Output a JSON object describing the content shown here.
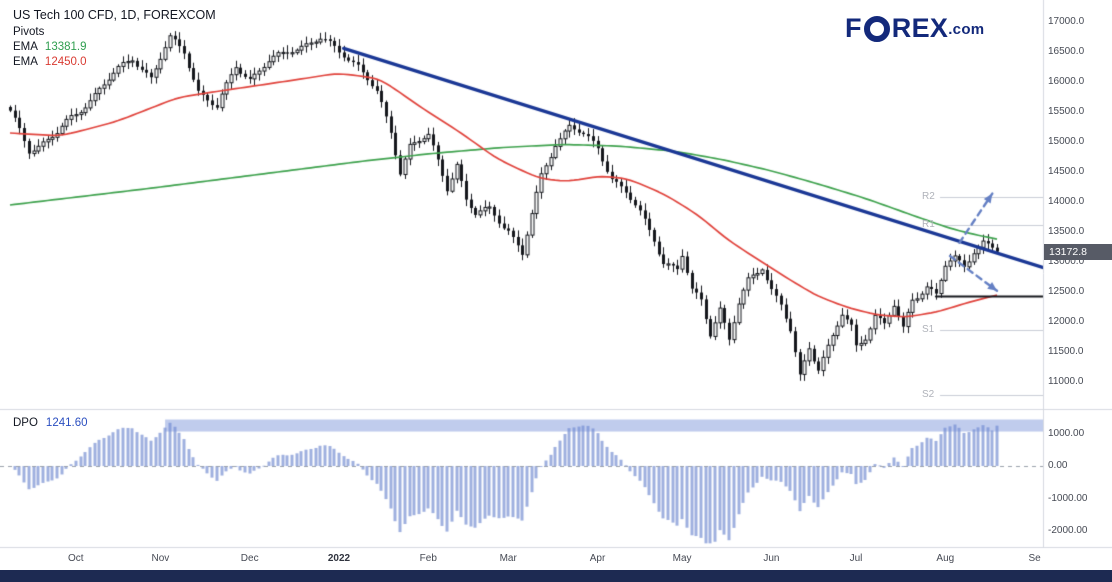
{
  "header": {
    "title": "US Tech 100 CFD, 1D, FOREXCOM",
    "indicator_pivots": "Pivots",
    "ema_label": "EMA",
    "ema_slow_value": "13381.9",
    "ema_fast_value": "12450.0"
  },
  "logo": {
    "left": "F",
    "right": "REX",
    "tld": ".com"
  },
  "price_axis": {
    "ticks": [
      "17000.0",
      "16500.0",
      "16000.0",
      "15500.0",
      "15000.0",
      "14500.0",
      "14000.0",
      "13500.0",
      "13000.0",
      "12500.0",
      "12000.0",
      "11500.0",
      "11000.0"
    ],
    "last_price_badge": "13172.8"
  },
  "dpo_panel": {
    "label": "DPO",
    "value": "1241.60",
    "ticks": [
      "1000.00",
      "0.00",
      "-1000.00",
      "-2000.00"
    ]
  },
  "time_axis": {
    "labels": [
      "Oct",
      "Nov",
      "Dec",
      "2022",
      "Feb",
      "Mar",
      "Apr",
      "May",
      "Jun",
      "Jul",
      "Aug",
      "Se"
    ]
  },
  "colors": {
    "candle": "#15171c",
    "candle_up_fill": "#ffffff",
    "ema_green": "#3fa24e",
    "ema_red": "#e0433c",
    "ema_green_text": "#2f9e4f",
    "ema_red_text": "#d93b32",
    "trendline": "#1a3795",
    "histogram": "#9fb0df",
    "band": "rgba(116,142,216,0.45)",
    "arrow": "#6580c4",
    "badge_bg": "#575b66",
    "logo_navy": "#13297b",
    "separator": "#d6d9e0",
    "axis_text": "#464a54",
    "pivot_text": "#b0b3ba",
    "support_line": "#15171c",
    "zero_line": "#9aa0ab",
    "dpo_value": "#2b4fc0",
    "bottom_bar": "#1d2a52"
  },
  "chart_data": [
    {
      "type": "candlestick",
      "symbol": "US Tech 100 CFD",
      "timeframe": "1D",
      "exchange": "FOREXCOM",
      "bars_total": 211,
      "last_price": 13172.8,
      "ylim": [
        10550,
        17367
      ],
      "yticks": [
        17000,
        16500,
        16000,
        15500,
        15000,
        14500,
        14000,
        13500,
        13000,
        12500,
        12000,
        11500,
        11000
      ],
      "x_month_ticks": [
        {
          "label": "Oct",
          "bar": 14
        },
        {
          "label": "Nov",
          "bar": 32
        },
        {
          "label": "Dec",
          "bar": 51
        },
        {
          "label": "2022",
          "bar": 70
        },
        {
          "label": "Feb",
          "bar": 89
        },
        {
          "label": "Mar",
          "bar": 106
        },
        {
          "label": "Apr",
          "bar": 125
        },
        {
          "label": "May",
          "bar": 143
        },
        {
          "label": "Jun",
          "bar": 162
        },
        {
          "label": "Jul",
          "bar": 180
        },
        {
          "label": "Aug",
          "bar": 199
        },
        {
          "label": "Se",
          "bar": 218
        }
      ],
      "close_keypoints": [
        [
          0,
          15480
        ],
        [
          4,
          14860
        ],
        [
          10,
          15150
        ],
        [
          14,
          15450
        ],
        [
          19,
          15900
        ],
        [
          26,
          16400
        ],
        [
          30,
          16080
        ],
        [
          34,
          16700
        ],
        [
          37,
          16520
        ],
        [
          40,
          15860
        ],
        [
          44,
          15550
        ],
        [
          48,
          16280
        ],
        [
          51,
          16060
        ],
        [
          55,
          16320
        ],
        [
          60,
          16560
        ],
        [
          66,
          16700
        ],
        [
          71,
          16480
        ],
        [
          74,
          16280
        ],
        [
          78,
          15800
        ],
        [
          81,
          15180
        ],
        [
          83,
          14520
        ],
        [
          85,
          14950
        ],
        [
          89,
          15080
        ],
        [
          93,
          14250
        ],
        [
          95,
          14650
        ],
        [
          97,
          14030
        ],
        [
          99,
          13780
        ],
        [
          102,
          13870
        ],
        [
          106,
          13550
        ],
        [
          109,
          13120
        ],
        [
          113,
          14420
        ],
        [
          116,
          15000
        ],
        [
          119,
          15260
        ],
        [
          122,
          15100
        ],
        [
          125,
          14900
        ],
        [
          128,
          14420
        ],
        [
          131,
          14150
        ],
        [
          134,
          13800
        ],
        [
          137,
          13400
        ],
        [
          139,
          13010
        ],
        [
          142,
          12870
        ],
        [
          143,
          13090
        ],
        [
          145,
          12500
        ],
        [
          147,
          12370
        ],
        [
          149,
          11840
        ],
        [
          151,
          12230
        ],
        [
          153,
          11690
        ],
        [
          155,
          12280
        ],
        [
          157,
          12680
        ],
        [
          160,
          12950
        ],
        [
          162,
          12550
        ],
        [
          164,
          12270
        ],
        [
          166,
          11830
        ],
        [
          168,
          11070
        ],
        [
          170,
          11600
        ],
        [
          172,
          11250
        ],
        [
          175,
          11750
        ],
        [
          177,
          12100
        ],
        [
          179,
          11900
        ],
        [
          180,
          11590
        ],
        [
          182,
          11780
        ],
        [
          184,
          12120
        ],
        [
          186,
          11950
        ],
        [
          188,
          12250
        ],
        [
          190,
          11870
        ],
        [
          192,
          12400
        ],
        [
          195,
          12600
        ],
        [
          197,
          12440
        ],
        [
          199,
          12920
        ],
        [
          201,
          13050
        ],
        [
          203,
          12950
        ],
        [
          205,
          13210
        ],
        [
          207,
          13320
        ],
        [
          210,
          13172.8
        ]
      ],
      "ema_slow": {
        "name": "EMA (green)",
        "current": 13381.9,
        "points": [
          [
            0,
            13950
          ],
          [
            15,
            14090
          ],
          [
            30,
            14230
          ],
          [
            45,
            14380
          ],
          [
            60,
            14530
          ],
          [
            75,
            14680
          ],
          [
            90,
            14810
          ],
          [
            105,
            14910
          ],
          [
            118,
            14960
          ],
          [
            130,
            14930
          ],
          [
            142,
            14840
          ],
          [
            152,
            14700
          ],
          [
            162,
            14520
          ],
          [
            172,
            14300
          ],
          [
            182,
            14060
          ],
          [
            192,
            13780
          ],
          [
            200,
            13560
          ],
          [
            205,
            13460
          ],
          [
            210,
            13381.9
          ]
        ]
      },
      "ema_fast": {
        "name": "EMA (red)",
        "current": 12450.0,
        "points": [
          [
            0,
            15150
          ],
          [
            11,
            15100
          ],
          [
            23,
            15350
          ],
          [
            36,
            15750
          ],
          [
            49,
            15900
          ],
          [
            62,
            16050
          ],
          [
            70,
            16150
          ],
          [
            79,
            16050
          ],
          [
            87,
            15600
          ],
          [
            96,
            15150
          ],
          [
            104,
            14700
          ],
          [
            113,
            14380
          ],
          [
            119,
            14340
          ],
          [
            126,
            14440
          ],
          [
            132,
            14380
          ],
          [
            140,
            14100
          ],
          [
            147,
            13750
          ],
          [
            153,
            13350
          ],
          [
            160,
            13000
          ],
          [
            166,
            12700
          ],
          [
            172,
            12420
          ],
          [
            179,
            12220
          ],
          [
            185,
            12110
          ],
          [
            191,
            12080
          ],
          [
            198,
            12180
          ],
          [
            204,
            12330
          ],
          [
            210,
            12450
          ]
        ]
      },
      "trendline": {
        "from_bar": 71,
        "from_price": 16560,
        "to_bar": 221,
        "to_price": 12880
      },
      "pivots": [
        {
          "label": "R2",
          "price": 14080
        },
        {
          "label": "R1",
          "price": 13620
        },
        {
          "label": "S1",
          "price": 11870
        },
        {
          "label": "S2",
          "price": 10780
        }
      ],
      "support_line": {
        "price": 12430,
        "from_bar": 197
      },
      "arrows": [
        {
          "dir": "up",
          "from": [
            202,
            13320
          ],
          "to": [
            209,
            14140
          ]
        },
        {
          "dir": "down",
          "from": [
            200,
            13100
          ],
          "to": [
            210,
            12520
          ]
        }
      ]
    },
    {
      "type": "histogram",
      "indicator": "DPO",
      "current": 1241.6,
      "ylim": [
        -2500,
        1670
      ],
      "yticks": [
        1000,
        0,
        -1000,
        -2000
      ],
      "sma_period": 21,
      "displacement": 11,
      "band": {
        "from_value": 1060,
        "to_value": 1430,
        "from_bar": 33
      }
    }
  ]
}
